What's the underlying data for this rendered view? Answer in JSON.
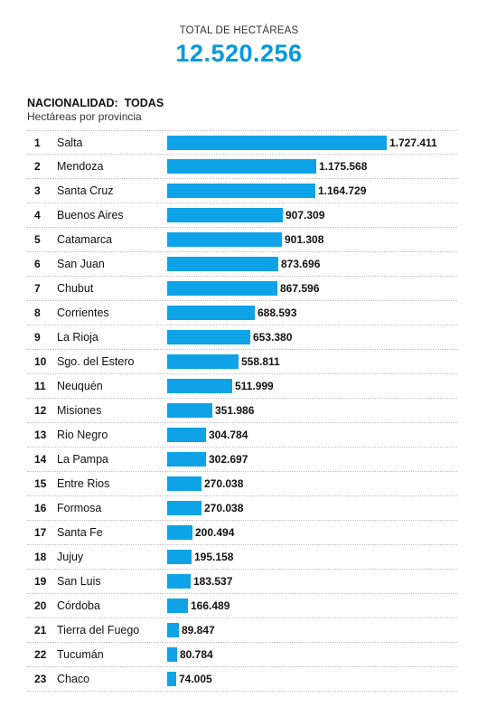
{
  "header": {
    "total_label": "TOTAL DE HECTÁREAS",
    "total_value": "12.520.256"
  },
  "section": {
    "title": "NACIONALIDAD:  TODAS",
    "subtitle": "Hectáreas por provincia"
  },
  "colors": {
    "accent": "#0099e0",
    "bar": "#0ea3e6"
  },
  "chart_data": {
    "type": "bar",
    "orientation": "horizontal",
    "title": "NACIONALIDAD:  TODAS",
    "subtitle": "Hectáreas por provincia",
    "ranks": [
      "1",
      "2",
      "3",
      "4",
      "5",
      "6",
      "7",
      "8",
      "9",
      "10",
      "11",
      "12",
      "13",
      "14",
      "15",
      "16",
      "17",
      "18",
      "19",
      "20",
      "21",
      "22",
      "23"
    ],
    "categories": [
      "Salta",
      "Mendoza",
      "Santa Cruz",
      "Buenos Aires",
      "Catamarca",
      "San Juan",
      "Chubut",
      "Corrientes",
      "La Rioja",
      "Sgo. del Estero",
      "Neuquén",
      "Misiones",
      "Rio Negro",
      "La Pampa",
      "Entre Rios",
      "Formosa",
      "Santa Fe",
      "Jujuy",
      "San Luis",
      "Córdoba",
      "Tierra del Fuego",
      "Tucumán",
      "Chaco"
    ],
    "values": [
      1727411,
      1175568,
      1164729,
      907309,
      901308,
      873696,
      867596,
      688593,
      653380,
      558811,
      511999,
      351986,
      304784,
      302697,
      270038,
      270038,
      200494,
      195158,
      183537,
      166489,
      89847,
      80784,
      74005
    ],
    "value_labels": [
      "1.727.411",
      "1.175.568",
      "1.164.729",
      "907.309",
      "901.308",
      "873.696",
      "867.596",
      "688.593",
      "653.380",
      "558.811",
      "511.999",
      "351.986",
      "304.784",
      "302.697",
      "270.038",
      "270.038",
      "200.494",
      "195.158",
      "183.537",
      "166.489",
      "89.847",
      "80.784",
      "74.005"
    ],
    "xlim": [
      0,
      1727411
    ]
  }
}
